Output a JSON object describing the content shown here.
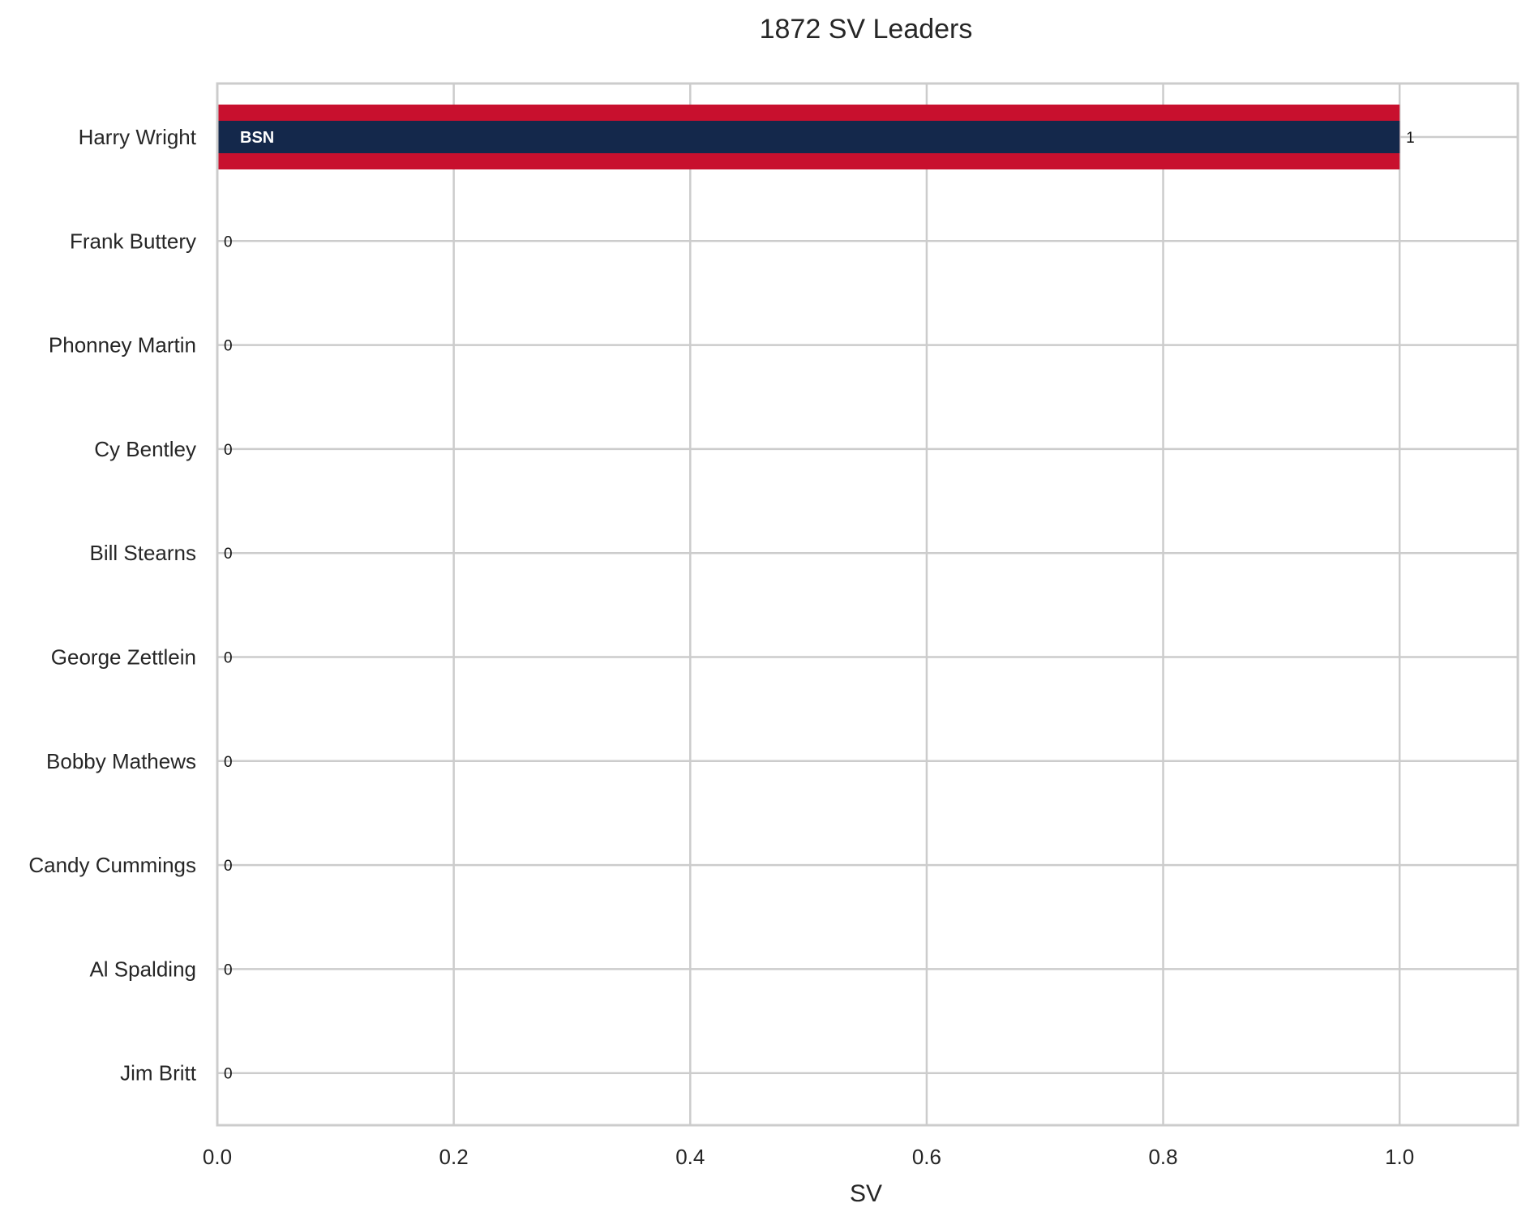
{
  "chart_data": {
    "type": "bar",
    "orientation": "horizontal",
    "title": "1872 SV Leaders",
    "xlabel": "SV",
    "ylabel": "",
    "xlim": [
      0,
      1.1
    ],
    "xticks": [
      "0.0",
      "0.2",
      "0.4",
      "0.6",
      "0.8",
      "1.0"
    ],
    "grid": true,
    "categories": [
      "Harry Wright",
      "Frank Buttery",
      "Phonney Martin",
      "Cy Bentley",
      "Bill Stearns",
      "George Zettlein",
      "Bobby Mathews",
      "Candy Cummings",
      "Al Spalding",
      "Jim Britt"
    ],
    "values": [
      1,
      0,
      0,
      0,
      0,
      0,
      0,
      0,
      0,
      0
    ],
    "data_labels": [
      "1",
      "0",
      "0",
      "0",
      "0",
      "0",
      "0",
      "0",
      "0",
      "0"
    ],
    "team_labels": [
      "BSN",
      "",
      "",
      "",
      "",
      "",
      "",
      "",
      "",
      ""
    ],
    "colors": {
      "primary": [
        "#14284b",
        "#14284b",
        "#14284b",
        "#14284b",
        "#14284b",
        "#14284b",
        "#14284b",
        "#14284b",
        "#14284b",
        "#14284b"
      ],
      "secondary": [
        "#c8102e",
        "#c8102e",
        "#c8102e",
        "#c8102e",
        "#c8102e",
        "#c8102e",
        "#c8102e",
        "#c8102e",
        "#c8102e",
        "#c8102e"
      ]
    }
  }
}
